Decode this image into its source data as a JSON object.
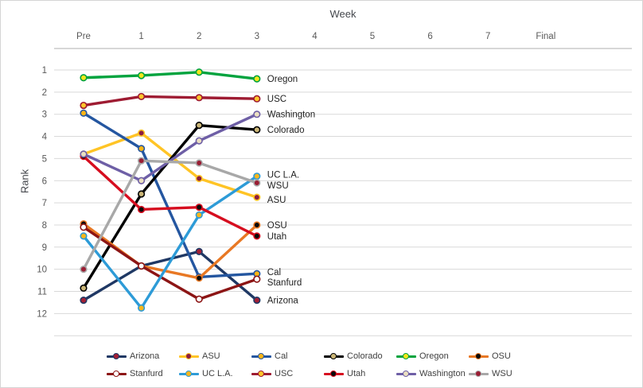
{
  "chart_data": {
    "type": "line",
    "title": "Week",
    "ylabel": "Rank",
    "categories": [
      "Pre",
      "1",
      "2",
      "3",
      "4",
      "5",
      "6",
      "7",
      "Final"
    ],
    "y_ticks": [
      1,
      2,
      3,
      4,
      5,
      6,
      7,
      8,
      9,
      10,
      11,
      12
    ],
    "y_axis_reversed": true,
    "ylim": [
      1,
      13
    ],
    "x_axis_position": "top",
    "legend_position": "bottom",
    "grid": true,
    "series": [
      {
        "name": "Arizona",
        "line_color": "#1F3864",
        "marker_color": "#A32035",
        "values": [
          11.4,
          9.85,
          9.2,
          11.4
        ]
      },
      {
        "name": "ASU",
        "line_color": "#FFC425",
        "marker_color": "#8C1D40",
        "values": [
          4.8,
          3.85,
          5.9,
          6.75
        ]
      },
      {
        "name": "Cal",
        "line_color": "#2456A0",
        "marker_color": "#FDB515",
        "values": [
          2.95,
          4.55,
          10.35,
          10.2
        ]
      },
      {
        "name": "Colorado",
        "line_color": "#000000",
        "marker_color": "#CBB677",
        "values": [
          10.85,
          6.6,
          3.5,
          3.7
        ]
      },
      {
        "name": "Oregon",
        "line_color": "#00A33E",
        "marker_color": "#F5E61B",
        "values": [
          1.35,
          1.25,
          1.1,
          1.4
        ]
      },
      {
        "name": "OSU",
        "line_color": "#E87824",
        "marker_color": "#0A0A0A",
        "values": [
          7.95,
          9.85,
          10.4,
          8.0
        ]
      },
      {
        "name": "Stanfurd",
        "line_color": "#8C1515",
        "marker_color": "#FFFFFF",
        "values": [
          8.1,
          9.85,
          11.35,
          10.45
        ]
      },
      {
        "name": "UC L.A.",
        "line_color": "#2D9BD7",
        "marker_color": "#F7B61C",
        "values": [
          8.5,
          11.75,
          7.55,
          5.8
        ]
      },
      {
        "name": "USC",
        "line_color": "#9E1B32",
        "marker_color": "#FFC72C",
        "values": [
          2.6,
          2.2,
          2.25,
          2.3
        ]
      },
      {
        "name": "Utah",
        "line_color": "#D60D1F",
        "marker_color": "#0A0A0A",
        "values": [
          4.9,
          7.3,
          7.2,
          8.5
        ]
      },
      {
        "name": "Washington",
        "line_color": "#6E5FA6",
        "marker_color": "#EADFC0",
        "values": [
          4.8,
          6.0,
          4.2,
          3.0
        ]
      },
      {
        "name": "WSU",
        "line_color": "#A8A8A8",
        "marker_color": "#9A1D33",
        "values": [
          10.0,
          5.1,
          5.2,
          6.1
        ]
      }
    ]
  },
  "style": {
    "gridline_color": "#D9D9D9",
    "axis_line_color": "#BFBFBF",
    "axis_text_color": "#595959",
    "data_label_color": "#222222",
    "legend_text_color": "#404040",
    "border_color": "#D5D5D5",
    "background_color": "#FFFFFF"
  }
}
